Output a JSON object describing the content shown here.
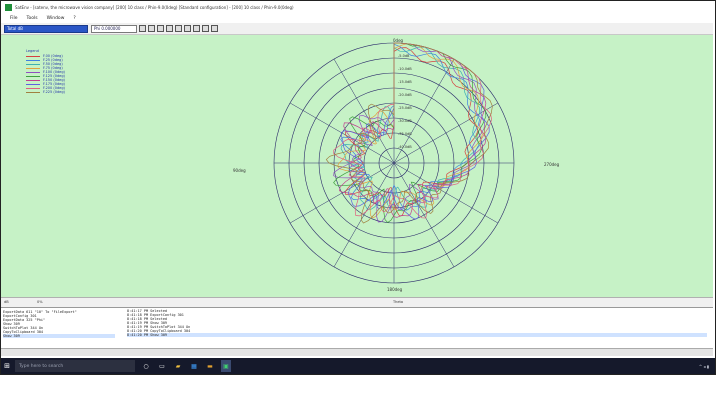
{
  "window": {
    "title": "SatEnv - [satenv, the microwave vision company] [200] 10 class / Phin-9.0(0deg) [Standard configuration] - [200] 10 class / Phin-9.0(0deg)"
  },
  "menu": [
    "File",
    "Tools",
    "Window",
    "?"
  ],
  "toolbar": {
    "select1": "Total dB",
    "select2": "Phi 0.000000"
  },
  "legend": {
    "title": "Legend",
    "items": [
      {
        "label": "F.00 (0deg)",
        "color": "#d64040"
      },
      {
        "label": "F.25 (0deg)",
        "color": "#4080e0"
      },
      {
        "label": "F.50 (0deg)",
        "color": "#40b0b0"
      },
      {
        "label": "F.75 (0deg)",
        "color": "#e0a040"
      },
      {
        "label": "F.100 (0deg)",
        "color": "#9050c0"
      },
      {
        "label": "F.125 (0deg)",
        "color": "#40a040"
      },
      {
        "label": "F.150 (0deg)",
        "color": "#c04090"
      },
      {
        "label": "F.175 (0deg)",
        "color": "#6060e0"
      },
      {
        "label": "F.200 (0deg)",
        "color": "#e06080"
      },
      {
        "label": "F.225 (0deg)",
        "color": "#a08040"
      }
    ]
  },
  "polar": {
    "angle_labels": {
      "top": "0deg",
      "right": "270deg",
      "bottom": "180deg",
      "left": "90deg"
    },
    "ring_labels": [
      "-5.0dB",
      "-10.0dB",
      "-15.0dB",
      "-20.0dB",
      "-25.0dB",
      "-30.0dB",
      "-35.0dB",
      "-40.0dB"
    ],
    "grid_color": "#2a2a6a"
  },
  "axisbar": {
    "left": "dB",
    "left2": "0%",
    "right": "Theta"
  },
  "console": {
    "left_lines": [
      "ExportData 611 \"10\" To \"FileExport\"",
      "ExportConfig 301",
      "ExportData 325 \"Phi\"",
      "Show 309",
      "SwitchToPlot 344 On",
      "CopyToClipboard 304",
      "Show 309"
    ],
    "right_lines": [
      "8:41:17 PM  Selected",
      "8:41:18 PM  ExportConfig 301",
      "8:41:18 PM  Selected",
      "8:41:19 PM  Show 309",
      "8:41:19 PM  SwitchToPlot 344 On",
      "8:41:20 PM  CopyToClipboard 304",
      "8:41:20 PM  Show 309"
    ]
  },
  "taskbar": {
    "search_placeholder": "Type here to search",
    "tray": "^ ◂ ▮"
  }
}
